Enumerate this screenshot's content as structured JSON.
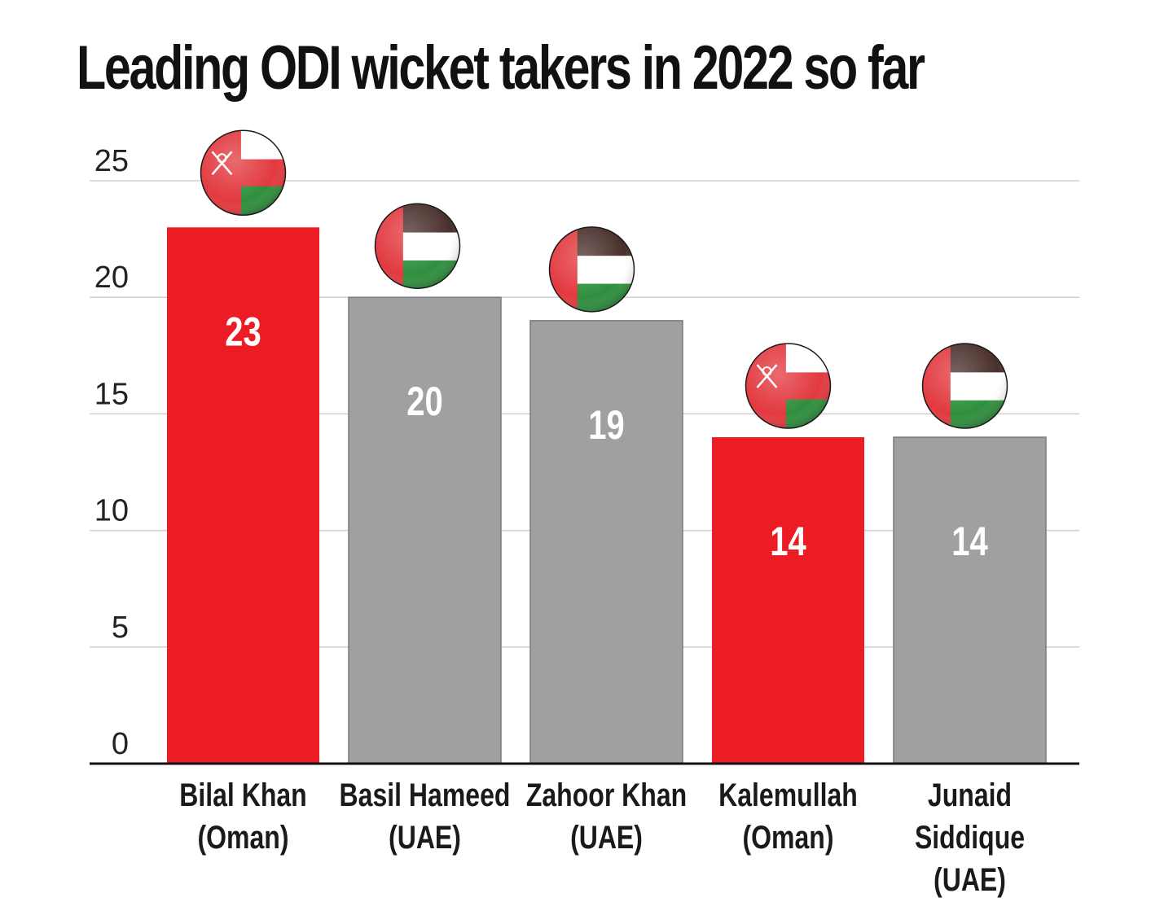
{
  "chart_data": {
    "type": "bar",
    "title": "Leading ODI wicket takers in 2022 so far",
    "xlabel": "",
    "ylabel": "",
    "ylim": [
      0,
      25
    ],
    "yticks": [
      "0",
      "5",
      "10",
      "15",
      "20",
      "25"
    ],
    "grid": true,
    "categories": [
      [
        "Bilal Khan",
        "(Oman)"
      ],
      [
        "Basil Hameed",
        "(UAE)"
      ],
      [
        "Zahoor Khan",
        "(UAE)"
      ],
      [
        "Kalemullah",
        "(Oman)"
      ],
      [
        "Junaid",
        "Siddique",
        "(UAE)"
      ]
    ],
    "values": [
      23,
      20,
      19,
      14,
      14
    ],
    "flags": [
      "oman-flag-icon",
      "uae-flag-icon",
      "uae-flag-icon",
      "oman-flag-icon",
      "uae-flag-icon"
    ],
    "bar_colors": [
      "#ec1c24",
      "#a0a0a0",
      "#a0a0a0",
      "#ec1c24",
      "#a0a0a0"
    ]
  }
}
